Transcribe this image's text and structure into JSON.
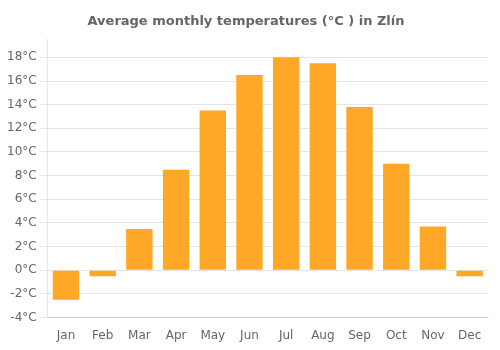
{
  "chart_data": {
    "type": "bar",
    "title": "Average monthly temperatures (°C ) in Zlín",
    "categories": [
      "Jan",
      "Feb",
      "Mar",
      "Apr",
      "May",
      "Jun",
      "Jul",
      "Aug",
      "Sep",
      "Oct",
      "Nov",
      "Dec"
    ],
    "values": [
      -2.5,
      -0.5,
      3.5,
      8.5,
      13.5,
      16.5,
      18.0,
      17.5,
      13.8,
      9.0,
      3.7,
      -0.5
    ],
    "color": "#FFA726",
    "ylim": [
      -4,
      19.5
    ],
    "yticks": [
      {
        "value": -4,
        "label": "-4°C"
      },
      {
        "value": -2,
        "label": "-2°C"
      },
      {
        "value": 0,
        "label": "0°C"
      },
      {
        "value": 2,
        "label": "2°C"
      },
      {
        "value": 4,
        "label": "4°C"
      },
      {
        "value": 6,
        "label": "6°C"
      },
      {
        "value": 8,
        "label": "8°C"
      },
      {
        "value": 10,
        "label": "10°C"
      },
      {
        "value": 12,
        "label": "12°C"
      },
      {
        "value": 14,
        "label": "14°C"
      },
      {
        "value": 16,
        "label": "16°C"
      },
      {
        "value": 18,
        "label": "18°C"
      }
    ],
    "grid": true
  }
}
